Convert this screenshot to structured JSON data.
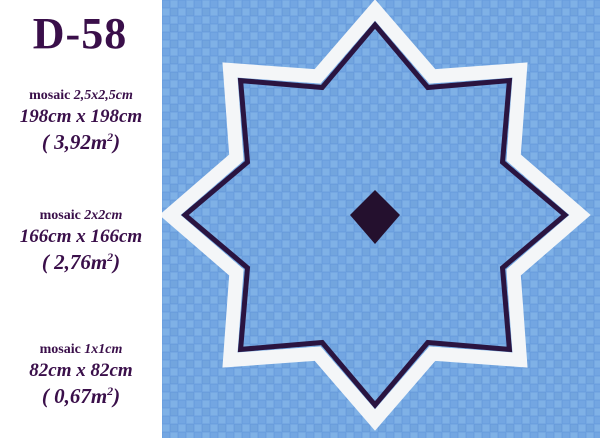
{
  "title": "D-58",
  "specs": [
    {
      "mosaic_label": "mosaic",
      "tile_size": "2,5x2,5cm",
      "dimensions": "198cm x 198cm",
      "area_value": "( 3,92m",
      "area_sup": "2",
      "area_close": ")"
    },
    {
      "mosaic_label": "mosaic",
      "tile_size": "2x2cm",
      "dimensions": "166cm x 166cm",
      "area_value": "( 2,76m",
      "area_sup": "2",
      "area_close": ")"
    },
    {
      "mosaic_label": "mosaic",
      "tile_size": "1x1cm",
      "dimensions": "82cm x 82cm",
      "area_value": "( 0,67m",
      "area_sup": "2",
      "area_close": ")"
    }
  ],
  "colors": {
    "text": "#3a0f4a",
    "tile_blue_light": "#7fb1e6",
    "tile_blue_mid": "#5b93d8",
    "tile_blue_dark": "#4a7fc8",
    "star_border_white": "#f4f6f8",
    "star_border_dark": "#2a1440",
    "center_diamond": "#24102e"
  }
}
